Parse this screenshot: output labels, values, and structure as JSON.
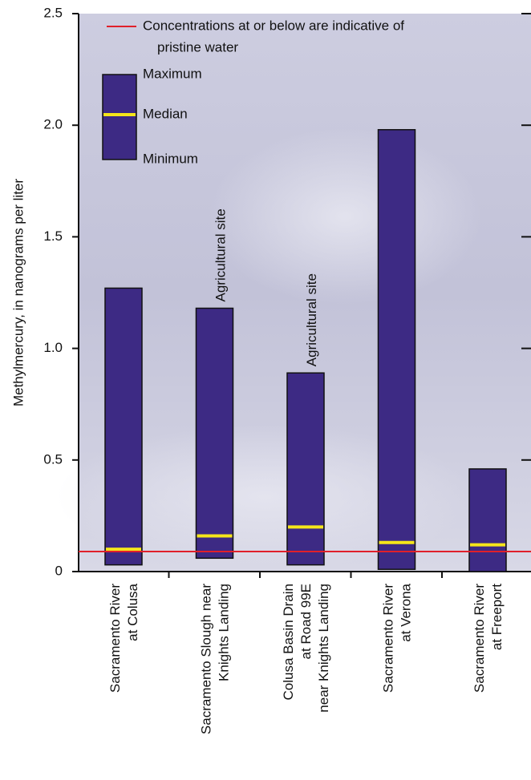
{
  "chart_data": {
    "type": "range_bar",
    "y_label": "Methylmercury, in nanograms per liter",
    "categories": [
      [
        "Sacramento River",
        "at Colusa"
      ],
      [
        "Sacramento Slough near",
        "Knights Landing"
      ],
      [
        "Colusa Basin Drain",
        "at Road 99E",
        "near Knights Landing"
      ],
      [
        "Sacramento River",
        "at Verona"
      ],
      [
        "Sacramento River",
        "at Freeport"
      ]
    ],
    "category_notes": [
      null,
      "Agricultural site",
      "Agricultural site",
      null,
      null
    ],
    "series": [
      {
        "name": "Maximum",
        "color": "#3d2a84",
        "values": [
          1.27,
          1.18,
          0.89,
          1.98,
          0.46
        ]
      },
      {
        "name": "Median",
        "color": "#f5e51a",
        "values": [
          0.1,
          0.16,
          0.2,
          0.13,
          0.12
        ]
      },
      {
        "name": "Minimum",
        "color": "#3d2a84",
        "values": [
          0.03,
          0.06,
          0.03,
          0.01,
          0.0
        ]
      }
    ],
    "reference_line": {
      "value": 0.09,
      "color": "#e0202a",
      "label_lines": [
        "Concentrations at or below are indicative of",
        "pristine water"
      ]
    },
    "ylim": [
      0,
      2.5
    ],
    "yticks": [
      0,
      0.5,
      {
        "value": 1,
        "label": "1.0"
      },
      1.5,
      {
        "value": 2,
        "label": "2.0"
      },
      2.5
    ]
  }
}
